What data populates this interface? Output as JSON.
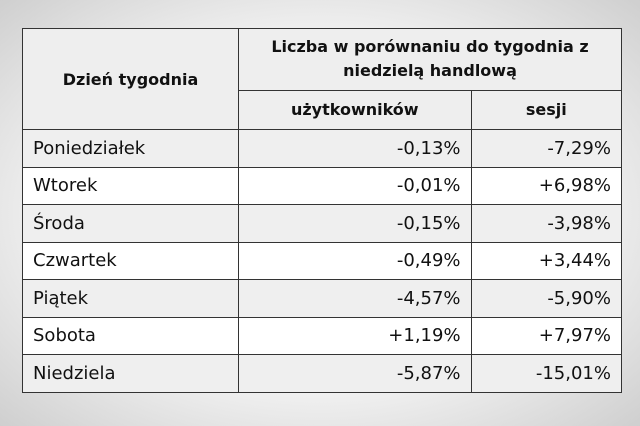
{
  "table": {
    "headers": {
      "day": "Dzień tygodnia",
      "group": "Liczba w porównaniu do tygodnia z niedzielą handlową",
      "columns": [
        "użytkowników",
        "sesji"
      ]
    },
    "rows": [
      [
        "Poniedziałek",
        "-0,13%",
        "-7,29%"
      ],
      [
        "Wtorek",
        "-0,01%",
        "+6,98%"
      ],
      [
        "Środa",
        "-0,15%",
        "-3,98%"
      ],
      [
        "Czwartek",
        "-0,49%",
        "+3,44%"
      ],
      [
        "Piątek",
        "-4,57%",
        "-5,90%"
      ],
      [
        "Sobota",
        "+1,19%",
        "+7,97%"
      ],
      [
        "Niedziela",
        "-5,87%",
        "-15,01%"
      ]
    ]
  }
}
